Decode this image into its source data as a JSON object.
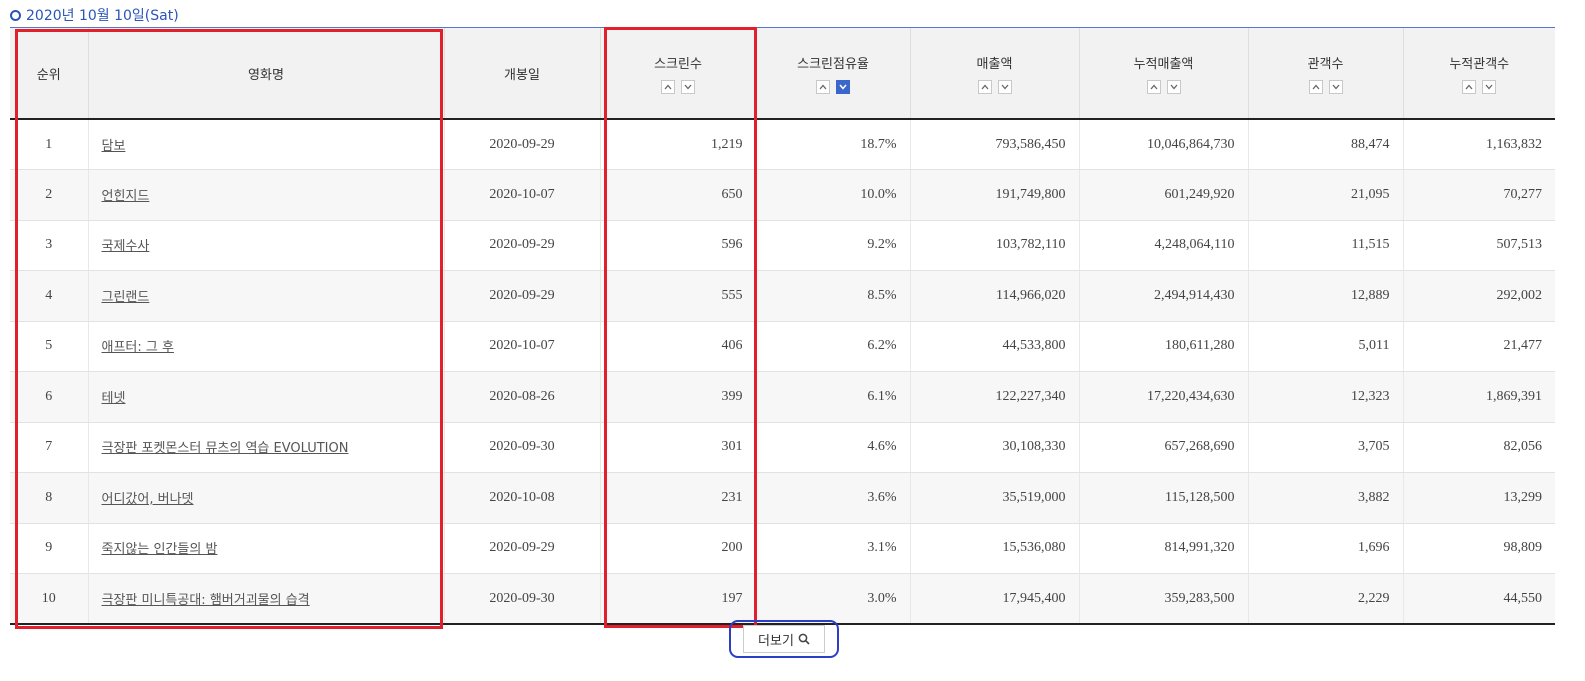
{
  "header": {
    "date": "2020년 10월 10일(Sat)"
  },
  "table": {
    "columns": {
      "rank": "순위",
      "title": "영화명",
      "open_date": "개봉일",
      "screens": "스크린수",
      "screen_share": "스크린점유율",
      "sales": "매출액",
      "cum_sales": "누적매출액",
      "audience": "관객수",
      "cum_audience": "누적관객수"
    },
    "rows": [
      {
        "rank": "1",
        "title": "담보",
        "open_date": "2020-09-29",
        "screens": "1,219",
        "screen_share": "18.7%",
        "sales": "793,586,450",
        "cum_sales": "10,046,864,730",
        "audience": "88,474",
        "cum_audience": "1,163,832"
      },
      {
        "rank": "2",
        "title": "언힌지드",
        "open_date": "2020-10-07",
        "screens": "650",
        "screen_share": "10.0%",
        "sales": "191,749,800",
        "cum_sales": "601,249,920",
        "audience": "21,095",
        "cum_audience": "70,277"
      },
      {
        "rank": "3",
        "title": "국제수사",
        "open_date": "2020-09-29",
        "screens": "596",
        "screen_share": "9.2%",
        "sales": "103,782,110",
        "cum_sales": "4,248,064,110",
        "audience": "11,515",
        "cum_audience": "507,513"
      },
      {
        "rank": "4",
        "title": "그린랜드",
        "open_date": "2020-09-29",
        "screens": "555",
        "screen_share": "8.5%",
        "sales": "114,966,020",
        "cum_sales": "2,494,914,430",
        "audience": "12,889",
        "cum_audience": "292,002"
      },
      {
        "rank": "5",
        "title": "애프터: 그 후",
        "open_date": "2020-10-07",
        "screens": "406",
        "screen_share": "6.2%",
        "sales": "44,533,800",
        "cum_sales": "180,611,280",
        "audience": "5,011",
        "cum_audience": "21,477"
      },
      {
        "rank": "6",
        "title": "테넷",
        "open_date": "2020-08-26",
        "screens": "399",
        "screen_share": "6.1%",
        "sales": "122,227,340",
        "cum_sales": "17,220,434,630",
        "audience": "12,323",
        "cum_audience": "1,869,391"
      },
      {
        "rank": "7",
        "title": "극장판 포켓몬스터 뮤츠의 역습 EVOLUTION",
        "open_date": "2020-09-30",
        "screens": "301",
        "screen_share": "4.6%",
        "sales": "30,108,330",
        "cum_sales": "657,268,690",
        "audience": "3,705",
        "cum_audience": "82,056"
      },
      {
        "rank": "8",
        "title": "어디갔어, 버나뎃",
        "open_date": "2020-10-08",
        "screens": "231",
        "screen_share": "3.6%",
        "sales": "35,519,000",
        "cum_sales": "115,128,500",
        "audience": "3,882",
        "cum_audience": "13,299"
      },
      {
        "rank": "9",
        "title": "죽지않는 인간들의 밤",
        "open_date": "2020-09-29",
        "screens": "200",
        "screen_share": "3.1%",
        "sales": "15,536,080",
        "cum_sales": "814,991,320",
        "audience": "1,696",
        "cum_audience": "98,809"
      },
      {
        "rank": "10",
        "title": "극장판 미니특공대: 햄버거괴물의 습격",
        "open_date": "2020-09-30",
        "screens": "197",
        "screen_share": "3.0%",
        "sales": "17,945,400",
        "cum_sales": "359,283,500",
        "audience": "2,229",
        "cum_audience": "44,550"
      }
    ],
    "active_sort": {
      "column": "screen_share",
      "direction": "desc"
    }
  },
  "more_button": {
    "label": "더보기"
  },
  "colors": {
    "accent": "#2a56b8",
    "sort_active": "#3b66cc",
    "highlight_red": "#e0202c",
    "highlight_blue": "#2c3ec8"
  }
}
